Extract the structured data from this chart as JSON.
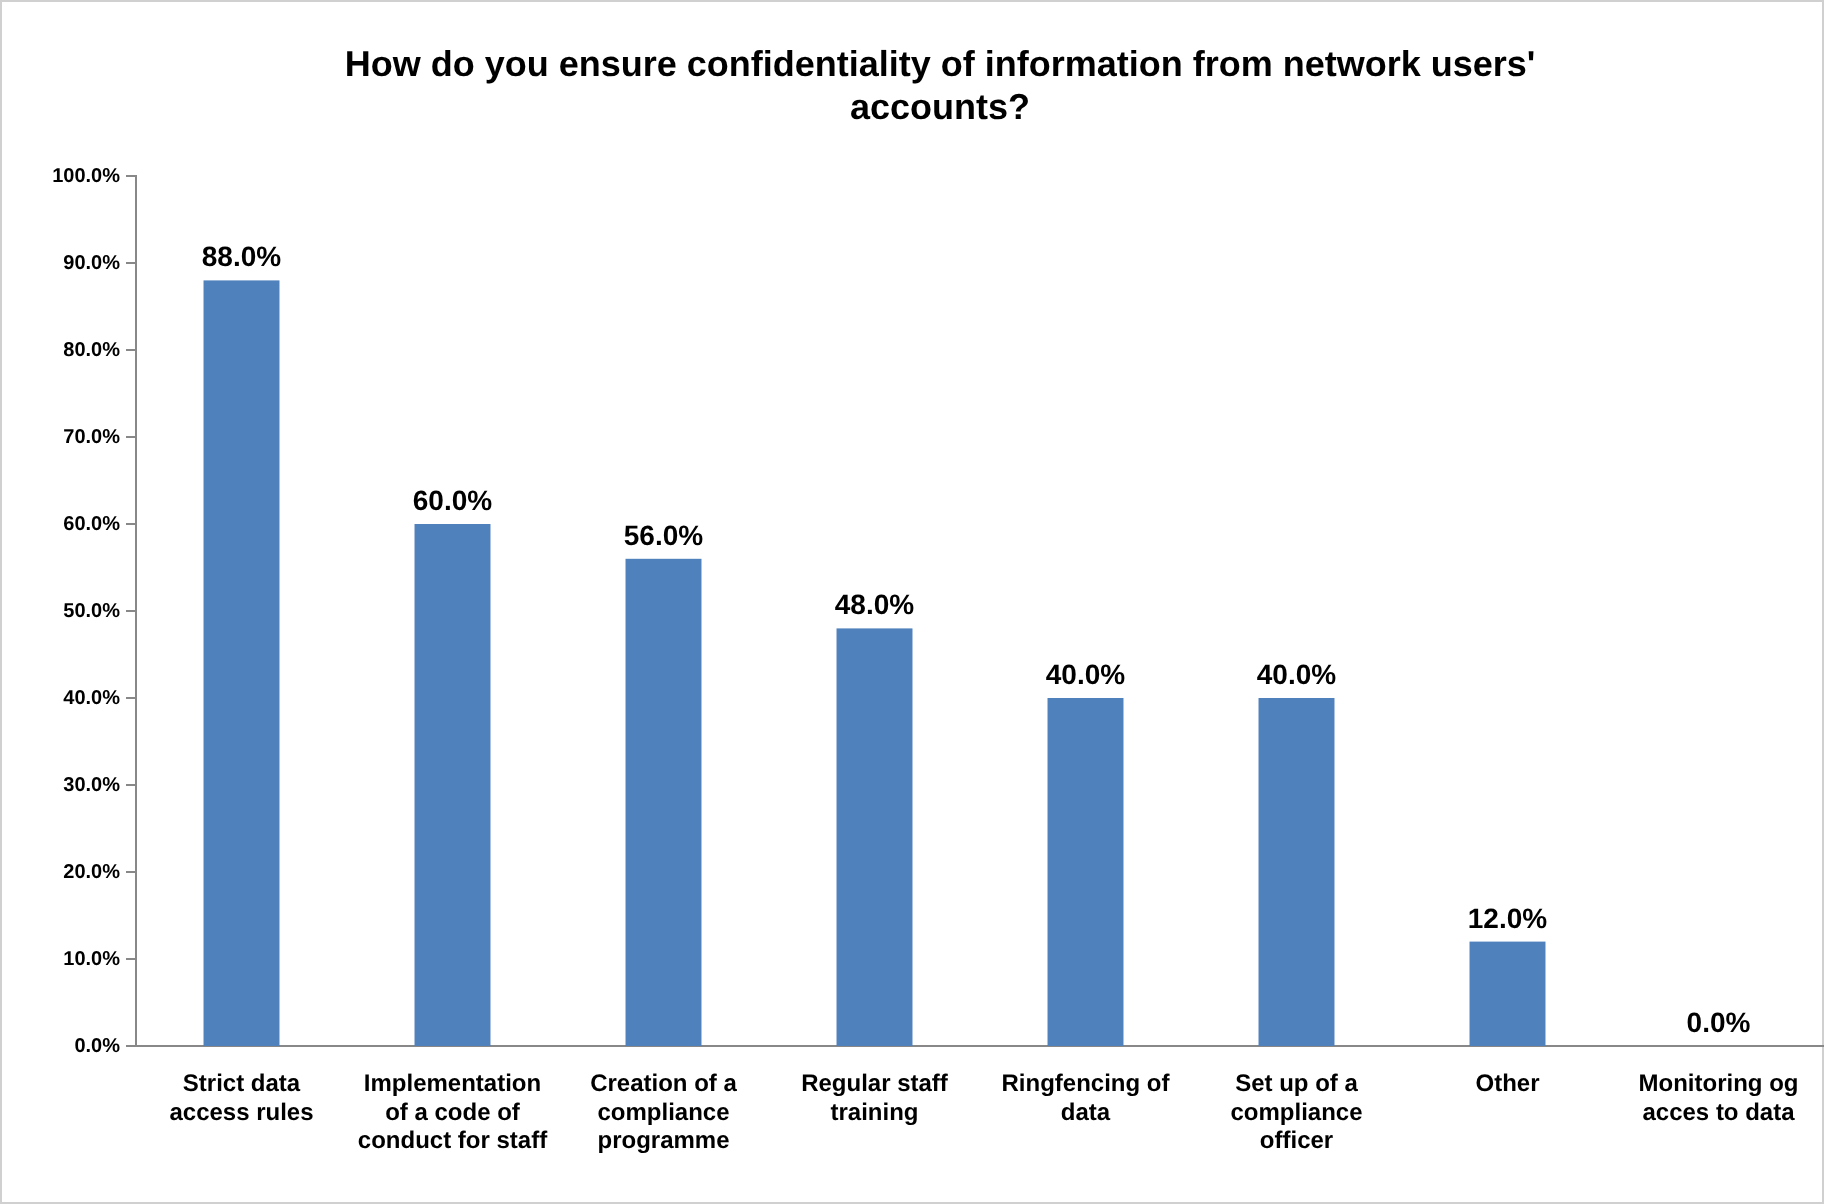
{
  "chart_data": {
    "type": "bar",
    "title": "How do you ensure confidentiality of information from network users' accounts?",
    "categories": [
      "Strict data access rules",
      "Implementation of a code of conduct for staff",
      "Creation of a compliance programme",
      "Regular staff training",
      "Ringfencing of data",
      "Set up of a compliance officer",
      "Other",
      "Monitoring og acces to data"
    ],
    "values": [
      88,
      60,
      56,
      48,
      40,
      40,
      12,
      0
    ],
    "value_labels": [
      "88.0%",
      "60.0%",
      "56.0%",
      "48.0%",
      "40.0%",
      "40.0%",
      "12.0%",
      "0.0%"
    ],
    "color": "#4f81bd",
    "ylim": [
      0,
      100
    ],
    "yticks": [
      {
        "value": 0,
        "label": "0.0%"
      },
      {
        "value": 10,
        "label": "10.0%"
      },
      {
        "value": 20,
        "label": "20.0%"
      },
      {
        "value": 30,
        "label": "30.0%"
      },
      {
        "value": 40,
        "label": "40.0%"
      },
      {
        "value": 50,
        "label": "50.0%"
      },
      {
        "value": 60,
        "label": "60.0%"
      },
      {
        "value": 70,
        "label": "70.0%"
      },
      {
        "value": 80,
        "label": "80.0%"
      },
      {
        "value": 90,
        "label": "90.0%"
      },
      {
        "value": 100,
        "label": "100.0%"
      }
    ],
    "grid": false
  }
}
